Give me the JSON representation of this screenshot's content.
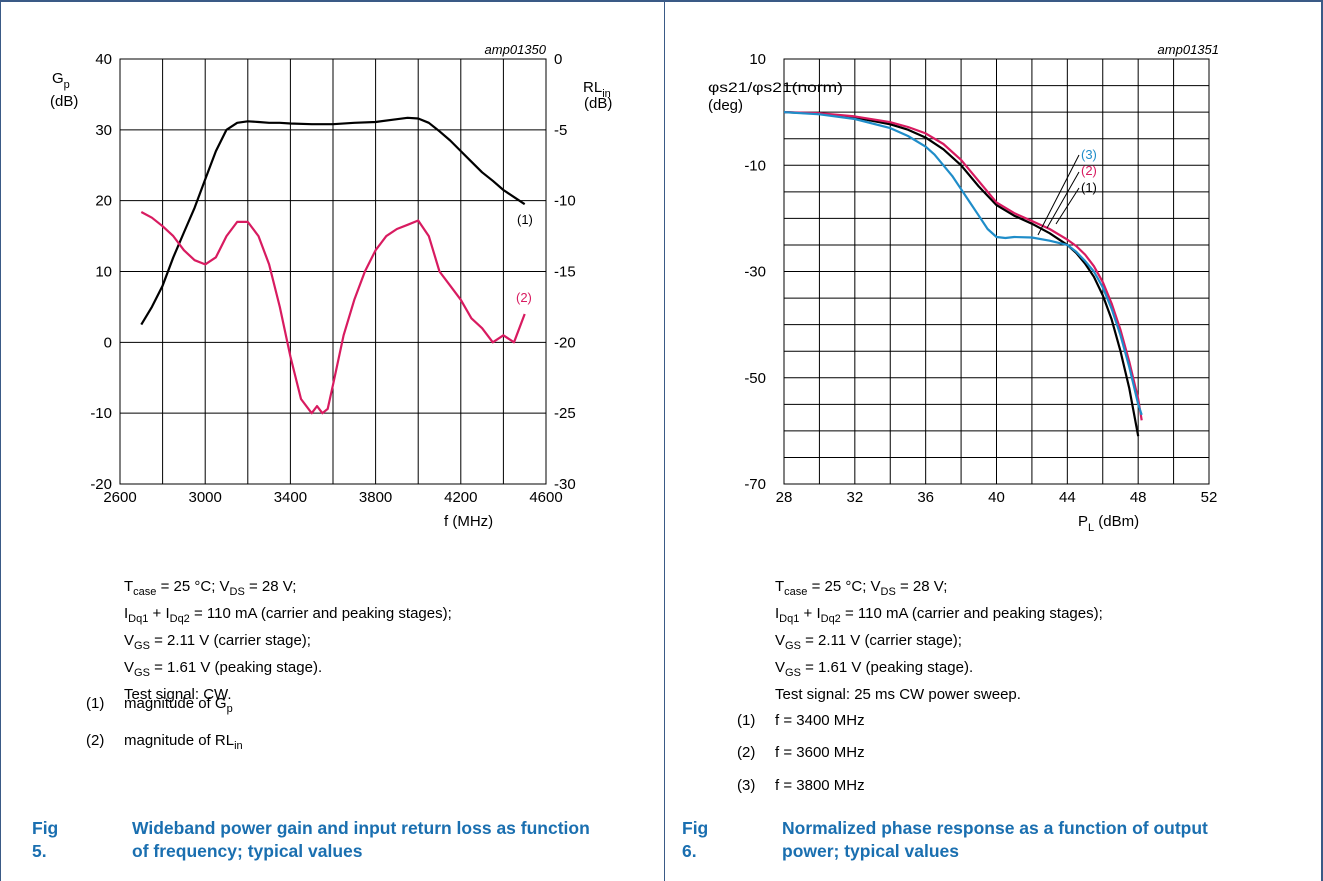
{
  "figures": [
    {
      "figure_id": "amp01350",
      "fig_label": "Fig 5.",
      "fig_title": "Wideband power gain and input return loss as function of frequency; typical values",
      "left_axis": {
        "name": "G",
        "sub": "p",
        "unit": "(dB)",
        "ticks": [
          "40",
          "30",
          "20",
          "10",
          "0",
          "-10",
          "-20"
        ]
      },
      "right_axis": {
        "name": "RL",
        "sub": "in",
        "unit": "(dB)",
        "ticks": [
          "0",
          "-5",
          "-10",
          "-15",
          "-20",
          "-25",
          "-30"
        ]
      },
      "x_axis": {
        "label": "f (MHz)",
        "ticks": [
          "2600",
          "3000",
          "3400",
          "3800",
          "4200",
          "4600"
        ]
      },
      "curve_tags": [
        "(1)",
        "(2)"
      ],
      "conditions": [
        {
          "a": "T",
          "as": "case",
          "b": " = 25 °C; V",
          "bs": "DS",
          "c": " = 28 V;"
        },
        {
          "a": "I",
          "as": "Dq1",
          "b": " + I",
          "bs": "Dq2",
          "c": " = 110 mA (carrier and peaking stages);"
        },
        {
          "a": "V",
          "as": "GS",
          "b": " = 2.11 V (carrier stage);",
          "bs": "",
          "c": ""
        },
        {
          "a": "V",
          "as": "GS",
          "b": " = 1.61 V (peaking stage).",
          "bs": "",
          "c": ""
        },
        {
          "a": "Test signal: CW.",
          "as": "",
          "b": "",
          "bs": "",
          "c": ""
        }
      ],
      "legend": [
        {
          "num": "(1)",
          "text": "magnitude of G",
          "sub": "p"
        },
        {
          "num": "(2)",
          "text": "magnitude of RL",
          "sub": "in"
        }
      ]
    },
    {
      "figure_id": "amp01351",
      "fig_label": "Fig 6.",
      "fig_title": "Normalized phase response as a function of output power; typical values",
      "y_axis": {
        "label": "φs21/φs21(norm)",
        "unit": "(deg)",
        "ticks": [
          "10",
          "-10",
          "-30",
          "-50",
          "-70"
        ]
      },
      "x_axis": {
        "label": "P",
        "label_sub": "L",
        "label_unit": " (dBm)",
        "ticks": [
          "28",
          "32",
          "36",
          "40",
          "44",
          "48",
          "52"
        ]
      },
      "curve_tags": [
        "(3)",
        "(2)",
        "(1)"
      ],
      "conditions": [
        {
          "a": "T",
          "as": "case",
          "b": " = 25 °C; V",
          "bs": "DS",
          "c": " = 28 V;"
        },
        {
          "a": "I",
          "as": "Dq1",
          "b": " + I",
          "bs": "Dq2",
          "c": " = 110 mA (carrier and peaking stages);"
        },
        {
          "a": "V",
          "as": "GS",
          "b": " = 2.11 V (carrier stage);",
          "bs": "",
          "c": ""
        },
        {
          "a": "V",
          "as": "GS",
          "b": " = 1.61 V (peaking stage).",
          "bs": "",
          "c": ""
        },
        {
          "a": "Test signal: 25 ms CW power sweep.",
          "as": "",
          "b": "",
          "bs": "",
          "c": ""
        }
      ],
      "legend": [
        {
          "num": "(1)",
          "text": "f = 3400 MHz",
          "sub": ""
        },
        {
          "num": "(2)",
          "text": "f = 3600 MHz",
          "sub": ""
        },
        {
          "num": "(3)",
          "text": "f = 3800 MHz",
          "sub": ""
        }
      ]
    }
  ],
  "colors": {
    "black": "#000000",
    "magenta": "#d81b60",
    "blue": "#1f8dc9",
    "caption": "#1a6fb0",
    "rule": "#3a5a86"
  },
  "chart_data": [
    {
      "type": "line",
      "xlabel": "f (MHz)",
      "xlim": [
        2600,
        4600
      ],
      "ylim_left": [
        -20,
        40
      ],
      "ylim_right": [
        -30,
        0
      ],
      "grid": true,
      "series": [
        {
          "name": "magnitude of Gp",
          "axis": "left",
          "color": "#000000",
          "x": [
            2700,
            2750,
            2800,
            2850,
            2900,
            2950,
            3000,
            3050,
            3100,
            3150,
            3200,
            3250,
            3300,
            3350,
            3400,
            3500,
            3600,
            3700,
            3800,
            3900,
            3950,
            4000,
            4050,
            4100,
            4150,
            4200,
            4250,
            4300,
            4350,
            4400,
            4450,
            4500
          ],
          "y": [
            2.5,
            5,
            8,
            12,
            15.5,
            19,
            23,
            27,
            30,
            31,
            31.2,
            31.1,
            31,
            31,
            30.9,
            30.8,
            30.8,
            31,
            31.1,
            31.5,
            31.7,
            31.6,
            31,
            29.8,
            28.5,
            27,
            25.5,
            24,
            22.8,
            21.5,
            20.5,
            19.5
          ]
        },
        {
          "name": "magnitude of RLin",
          "axis": "right",
          "color": "#d81b60",
          "x": [
            2700,
            2750,
            2800,
            2850,
            2900,
            2950,
            3000,
            3050,
            3100,
            3150,
            3200,
            3250,
            3300,
            3350,
            3400,
            3450,
            3500,
            3525,
            3550,
            3575,
            3600,
            3650,
            3700,
            3750,
            3800,
            3850,
            3900,
            3950,
            4000,
            4050,
            4100,
            4150,
            4200,
            4250,
            4300,
            4350,
            4400,
            4450,
            4500
          ],
          "y": [
            -10.8,
            -11.2,
            -11.8,
            -12.5,
            -13.5,
            -14.2,
            -14.5,
            -14,
            -12.5,
            -11.5,
            -11.5,
            -12.5,
            -14.5,
            -17.5,
            -21,
            -24,
            -25,
            -24.5,
            -25,
            -24.7,
            -23,
            -19.5,
            -17,
            -15,
            -13.5,
            -12.5,
            -12,
            -11.7,
            -11.4,
            -12.5,
            -15,
            -16,
            -17,
            -18.3,
            -19,
            -20,
            -19.5,
            -20,
            -18
          ]
        }
      ]
    },
    {
      "type": "line",
      "xlabel": "PL (dBm)",
      "ylabel": "φs21/φs21(norm) (deg)",
      "xlim": [
        28,
        52
      ],
      "ylim": [
        -70,
        10
      ],
      "grid": true,
      "series": [
        {
          "name": "f = 3400 MHz",
          "color": "#000000",
          "x": [
            28,
            30,
            32,
            34,
            35,
            36,
            37,
            38,
            39,
            40,
            41,
            42,
            43,
            44,
            44.5,
            45,
            45.5,
            46,
            46.5,
            47,
            47.5,
            48
          ],
          "y": [
            0,
            -0.3,
            -1,
            -2.3,
            -3.3,
            -4.8,
            -7,
            -10,
            -14,
            -17.5,
            -19.5,
            -21,
            -22.8,
            -25,
            -26.5,
            -28.5,
            -31,
            -34.5,
            -39,
            -45,
            -52,
            -61
          ]
        },
        {
          "name": "f = 3600 MHz",
          "color": "#d81b60",
          "x": [
            28,
            30,
            32,
            34,
            35,
            36,
            37,
            38,
            39,
            40,
            41,
            42,
            43,
            44,
            44.5,
            45,
            45.5,
            46,
            46.5,
            47,
            47.5,
            48,
            48.2
          ],
          "y": [
            0,
            -0.2,
            -0.8,
            -1.9,
            -2.8,
            -4,
            -6,
            -9,
            -13,
            -17,
            -19,
            -20.5,
            -22,
            -24,
            -25.2,
            -26.8,
            -29,
            -32,
            -36,
            -41,
            -47,
            -54,
            -58
          ]
        },
        {
          "name": "f = 3800 MHz",
          "color": "#1f8dc9",
          "x": [
            28,
            30,
            32,
            34,
            35,
            36,
            36.5,
            37,
            37.5,
            38,
            38.5,
            39,
            39.5,
            40,
            40.5,
            41,
            42,
            43,
            44,
            44.5,
            45,
            45.5,
            46,
            46.5,
            47,
            47.5,
            48,
            48.2
          ],
          "y": [
            0,
            -0.4,
            -1.3,
            -3,
            -4.5,
            -6.5,
            -8,
            -10,
            -12,
            -14.5,
            -17,
            -19.5,
            -22,
            -23.5,
            -23.7,
            -23.5,
            -23.6,
            -24.2,
            -25,
            -26.3,
            -28,
            -30,
            -33,
            -37,
            -42,
            -48,
            -55,
            -57
          ]
        }
      ]
    }
  ]
}
